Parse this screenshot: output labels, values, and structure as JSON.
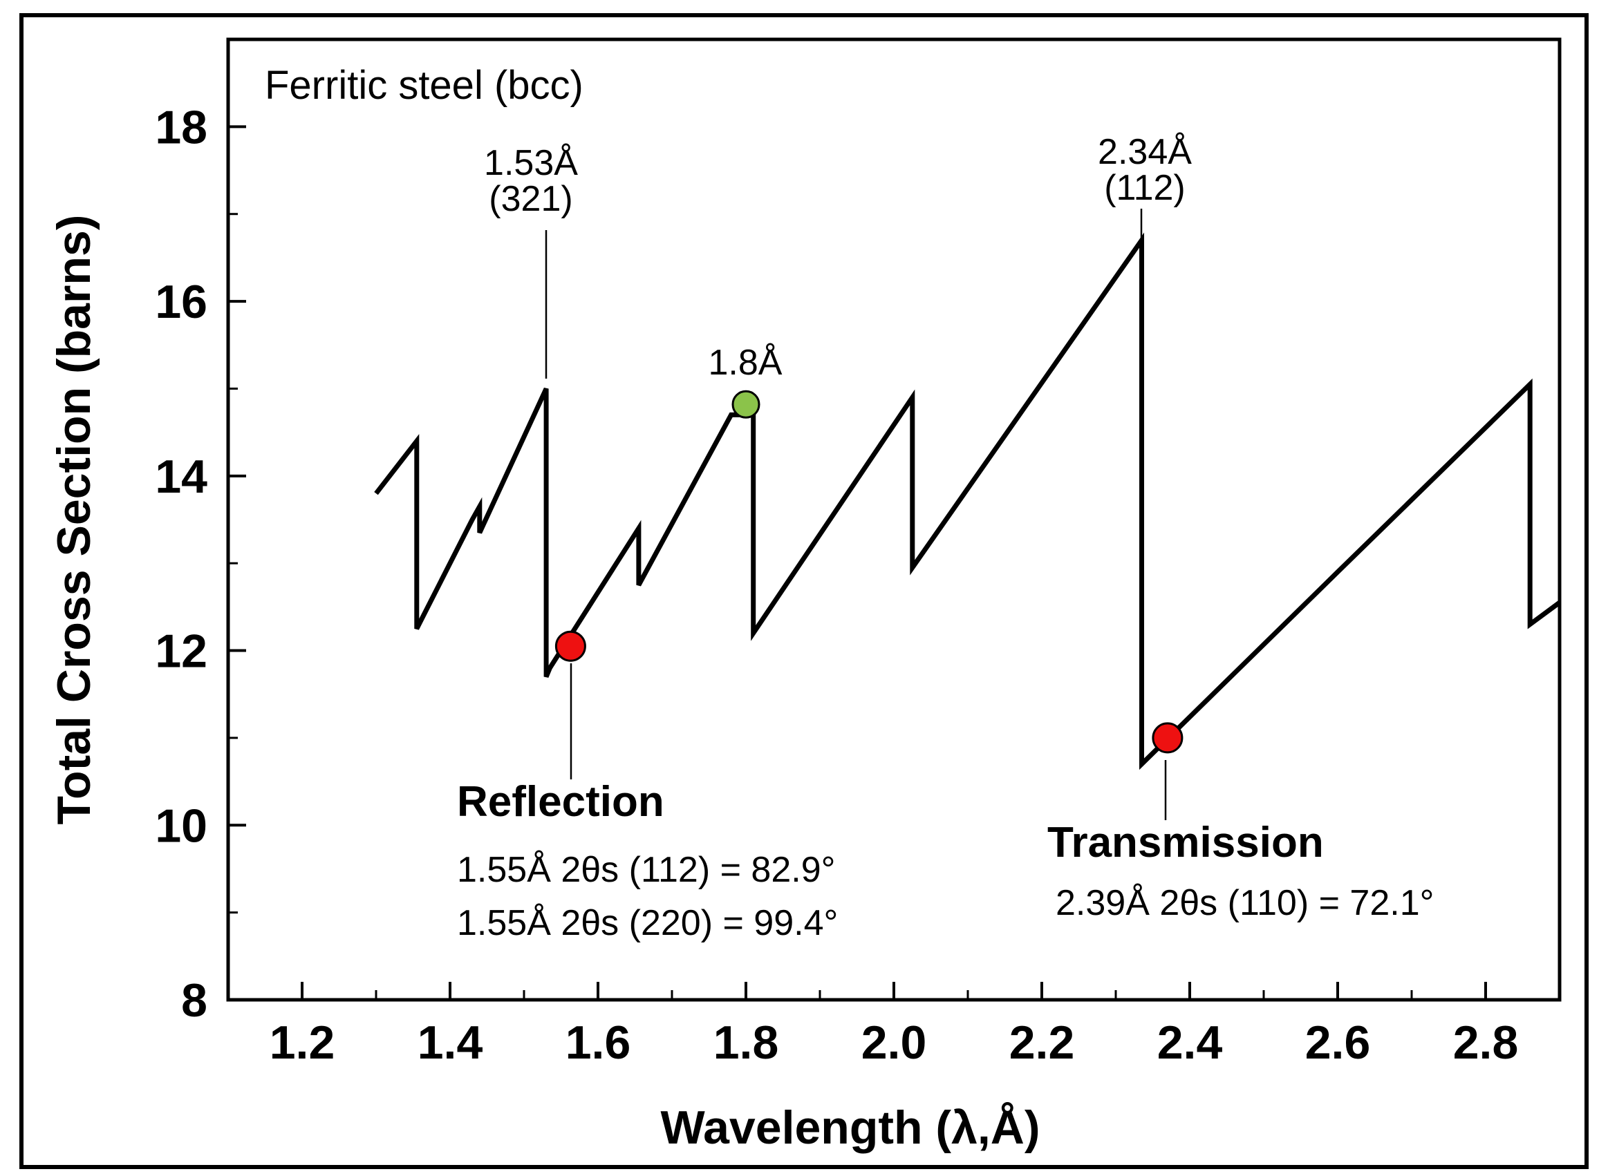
{
  "colors": {
    "line": "#000000",
    "marker_green": "#8bc34a",
    "marker_red": "#ee1111",
    "marker_edge": "#000000"
  },
  "chart_data": {
    "type": "line",
    "title": "Ferritic  steel  (bcc)",
    "xlabel": "Wavelength (λ,Å)",
    "ylabel": "Total Cross Section (barns)",
    "xlim": [
      1.1,
      2.9
    ],
    "ylim": [
      8,
      19
    ],
    "xticks": [
      1.2,
      1.4,
      1.6,
      1.8,
      2.0,
      2.2,
      2.4,
      2.6,
      2.8
    ],
    "xtick_labels": [
      "1.2",
      "1.4",
      "1.6",
      "1.8",
      "2.0",
      "2.2",
      "2.4",
      "2.6",
      "2.8"
    ],
    "x_minor_ticks": [
      1.3,
      1.5,
      1.7,
      1.9,
      2.1,
      2.3,
      2.5,
      2.7
    ],
    "yticks": [
      8,
      10,
      12,
      14,
      16,
      18
    ],
    "ytick_labels": [
      "8",
      "10",
      "12",
      "14",
      "16",
      "18"
    ],
    "y_minor_ticks": [
      9,
      11,
      13,
      15,
      17
    ],
    "series": [
      {
        "name": "Total cross section",
        "x": [
          1.3,
          1.355,
          1.355,
          1.43,
          1.43,
          1.44,
          1.44,
          1.53,
          1.53,
          1.535,
          1.655,
          1.655,
          1.78,
          1.81,
          1.81,
          2.025,
          2.025,
          2.335,
          2.335,
          2.6,
          2.86,
          2.86,
          2.9
        ],
        "y": [
          13.8,
          14.4,
          12.25,
          13.5,
          13.5,
          13.65,
          13.35,
          15.0,
          11.7,
          11.8,
          13.4,
          12.75,
          14.7,
          14.7,
          12.2,
          14.9,
          12.95,
          16.7,
          10.7,
          12.9,
          15.05,
          12.3,
          12.55
        ]
      }
    ],
    "markers": [
      {
        "name": "1.8Å",
        "x": 1.8,
        "y": 14.82,
        "color": "green"
      },
      {
        "name": "Reflection",
        "x": 1.563,
        "y": 12.05,
        "color": "red"
      },
      {
        "name": "Transmission",
        "x": 2.37,
        "y": 11.0,
        "color": "red"
      }
    ],
    "annotations": {
      "peak_321_wavelength": "1.53Å",
      "peak_321_hkl": "(321)",
      "peak_112_wavelength": "2.34Å",
      "peak_112_hkl": "(112)",
      "green_point_label": "1.8Å",
      "reflection_title": "Reflection",
      "reflection_line1": "1.55Å  2θs (112) = 82.9°",
      "reflection_line2": "1.55Å  2θs (220) = 99.4°",
      "transmission_title": "Transmission",
      "transmission_line1": "2.39Å   2θs (110) = 72.1°"
    },
    "grid": false,
    "legend": "none"
  }
}
